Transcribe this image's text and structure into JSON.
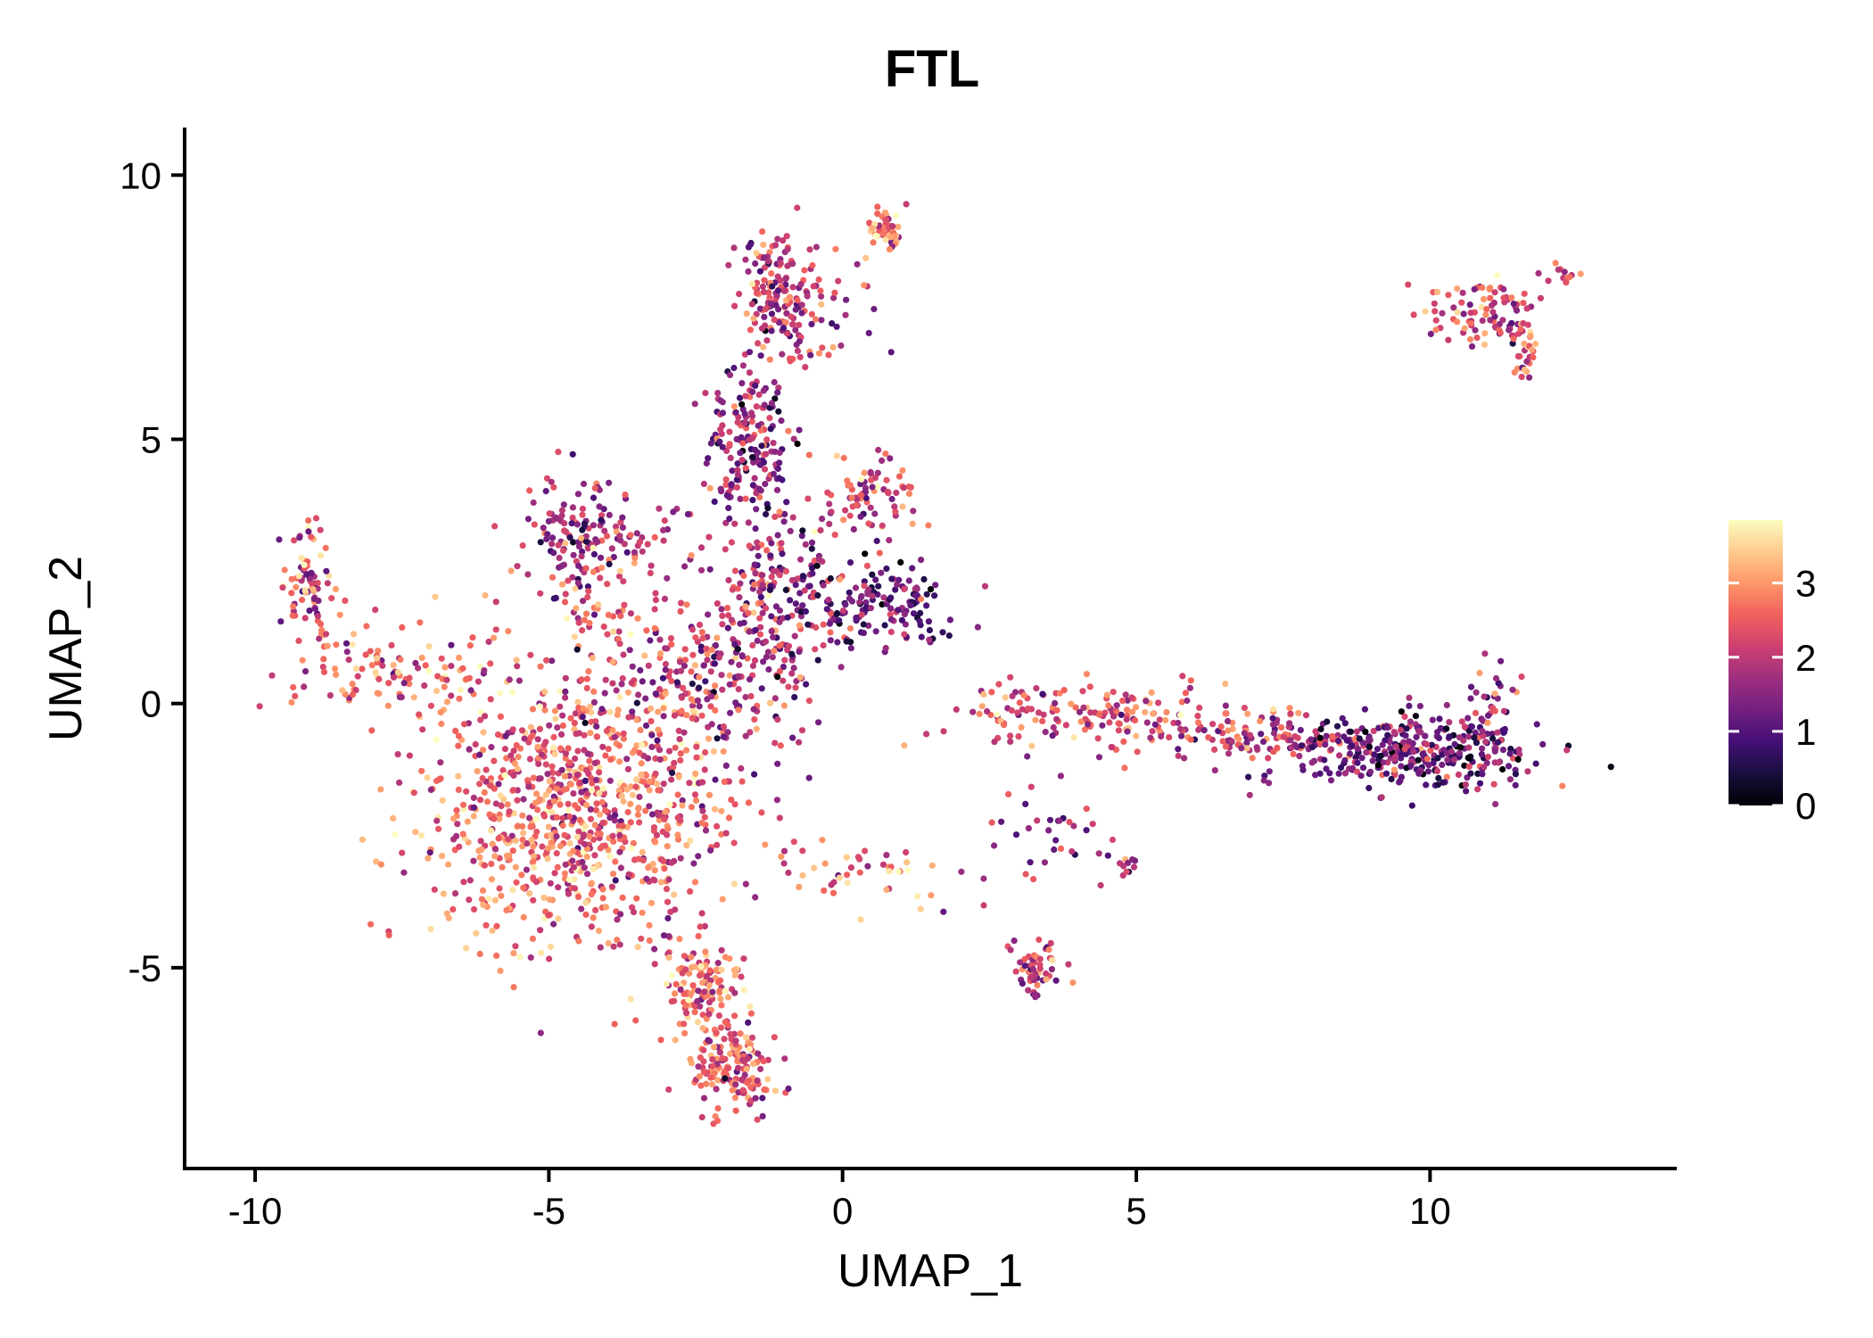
{
  "chart_data": {
    "type": "scatter",
    "title": "FTL",
    "xlabel": "UMAP_1",
    "ylabel": "UMAP_2",
    "xlim": [
      -11.2,
      14.2
    ],
    "ylim": [
      -8.8,
      10.9
    ],
    "x_ticks": [
      -10,
      -5,
      0,
      5,
      10
    ],
    "x_tick_labels": [
      "-10",
      "-5",
      "0",
      "5",
      "10"
    ],
    "y_ticks": [
      -5,
      0,
      5,
      10
    ],
    "y_tick_labels": [
      "-5",
      "0",
      "5",
      "10"
    ],
    "grid": false,
    "legend": {
      "type": "colorbar",
      "placement": "right",
      "range": [
        0,
        3.85
      ],
      "ticks": [
        0,
        1,
        2,
        3
      ],
      "tick_labels": [
        "0",
        "1",
        "2",
        "3"
      ],
      "colormap": "magma",
      "colors": [
        "#000004",
        "#180f3d",
        "#440f76",
        "#721f81",
        "#9e2f7f",
        "#cd4071",
        "#f1605d",
        "#fd9668",
        "#feca8d",
        "#fcfdbf"
      ]
    },
    "clusters": [
      {
        "name": "main-body",
        "cx": -4.5,
        "cy": -2.0,
        "sx": 1.3,
        "sy": 1.4,
        "n": 900,
        "level": 2.6
      },
      {
        "name": "upper-body-stream",
        "cx": -2.6,
        "cy": 0.3,
        "sx": 1.1,
        "sy": 0.9,
        "n": 250,
        "level": 2.0
      },
      {
        "name": "bottom-tail-upper",
        "cx": -2.4,
        "cy": -5.4,
        "sx": 0.35,
        "sy": 0.6,
        "n": 120,
        "level": 2.6
      },
      {
        "name": "bottom-tail-lower",
        "cx": -1.9,
        "cy": -6.9,
        "sx": 0.35,
        "sy": 0.4,
        "n": 150,
        "level": 2.4
      },
      {
        "name": "left-arm",
        "cx": -7.5,
        "cy": 0.6,
        "sx": 1.1,
        "sy": 0.5,
        "n": 120,
        "level": 2.6
      },
      {
        "name": "left-arm-tip",
        "cx": -9.1,
        "cy": 2.2,
        "sx": 0.2,
        "sy": 0.6,
        "n": 80,
        "level": 2.3
      },
      {
        "name": "upper-left-branch",
        "cx": -4.6,
        "cy": 3.3,
        "sx": 0.4,
        "sy": 0.6,
        "n": 110,
        "level": 1.8
      },
      {
        "name": "upper-left-diagonal",
        "cx": -4.1,
        "cy": 1.8,
        "sx": 0.3,
        "sy": 0.6,
        "n": 40,
        "level": 2.6
      },
      {
        "name": "upper-left-lobe",
        "cx": -3.3,
        "cy": 3.2,
        "sx": 0.5,
        "sy": 0.4,
        "n": 40,
        "level": 1.8
      },
      {
        "name": "vertical-stem-low",
        "cx": -1.2,
        "cy": 2.0,
        "sx": 0.5,
        "sy": 0.9,
        "n": 200,
        "level": 1.8
      },
      {
        "name": "vertical-stem-mid",
        "cx": -1.6,
        "cy": 5.0,
        "sx": 0.35,
        "sy": 0.7,
        "n": 180,
        "level": 1.6
      },
      {
        "name": "vertical-stem-top",
        "cx": -1.1,
        "cy": 7.8,
        "sx": 0.3,
        "sy": 0.6,
        "n": 150,
        "level": 2.0
      },
      {
        "name": "top-bridge",
        "cx": -0.3,
        "cy": 7.5,
        "sx": 0.5,
        "sy": 0.5,
        "n": 40,
        "level": 2.0
      },
      {
        "name": "top-right-tip",
        "cx": 0.7,
        "cy": 9.0,
        "sx": 0.15,
        "sy": 0.2,
        "n": 50,
        "level": 2.8
      },
      {
        "name": "right-lobe-upper",
        "cx": 0.5,
        "cy": 3.9,
        "sx": 0.4,
        "sy": 0.35,
        "n": 80,
        "level": 2.4
      },
      {
        "name": "right-lobe-lower",
        "cx": 0.5,
        "cy": 1.9,
        "sx": 0.7,
        "sy": 0.4,
        "n": 160,
        "level": 1.3
      },
      {
        "name": "long-arm-left",
        "cx": 4.3,
        "cy": -0.2,
        "sx": 1.3,
        "sy": 0.3,
        "n": 170,
        "level": 2.4
      },
      {
        "name": "long-arm-right",
        "cx": 7.2,
        "cy": -0.7,
        "sx": 1.0,
        "sy": 0.2,
        "n": 120,
        "level": 2.2
      },
      {
        "name": "right-cluster",
        "cx": 9.8,
        "cy": -0.9,
        "sx": 1.1,
        "sy": 0.35,
        "n": 340,
        "level": 1.2
      },
      {
        "name": "right-cluster-spike",
        "cx": 11.1,
        "cy": 0.0,
        "sx": 0.2,
        "sy": 0.5,
        "n": 30,
        "level": 1.8
      },
      {
        "name": "top-right-cluster",
        "cx": 10.9,
        "cy": 7.4,
        "sx": 0.5,
        "sy": 0.3,
        "n": 90,
        "level": 2.2
      },
      {
        "name": "top-right-tail",
        "cx": 11.6,
        "cy": 6.6,
        "sx": 0.1,
        "sy": 0.3,
        "n": 30,
        "level": 2.4
      },
      {
        "name": "top-right-arm",
        "cx": 12.2,
        "cy": 8.1,
        "sx": 0.2,
        "sy": 0.1,
        "n": 12,
        "level": 2.6
      },
      {
        "name": "lower-stream",
        "cx": 0.6,
        "cy": -3.2,
        "sx": 0.9,
        "sy": 0.3,
        "n": 45,
        "level": 2.6
      },
      {
        "name": "lower-mid-chain",
        "cx": 3.6,
        "cy": -2.4,
        "sx": 0.6,
        "sy": 0.5,
        "n": 35,
        "level": 1.8
      },
      {
        "name": "lower-blob",
        "cx": 3.3,
        "cy": -5.1,
        "sx": 0.2,
        "sy": 0.35,
        "n": 60,
        "level": 2.0
      },
      {
        "name": "lower-right-blob",
        "cx": 4.9,
        "cy": -3.1,
        "sx": 0.1,
        "sy": 0.1,
        "n": 10,
        "level": 2.0
      }
    ]
  }
}
